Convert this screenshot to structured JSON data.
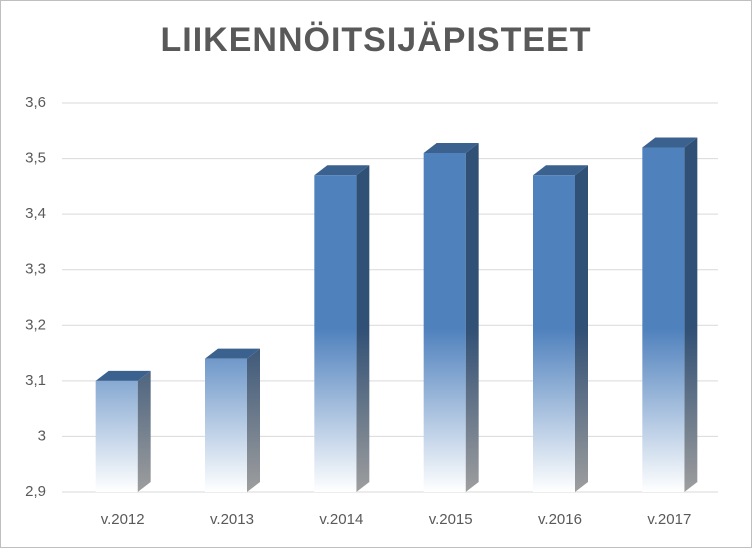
{
  "chart_data": {
    "type": "bar3d",
    "title": "LIIKENNÖITSIJÄPISTEET",
    "categories": [
      "v.2012",
      "v.2013",
      "v.2014",
      "v.2015",
      "v.2016",
      "v.2017"
    ],
    "values": [
      3.1,
      3.14,
      3.47,
      3.51,
      3.47,
      3.52
    ],
    "color": "#4f81bd",
    "ylim": [
      2.9,
      3.6
    ],
    "yticks": [
      {
        "value": 2.9,
        "label": "2,9"
      },
      3,
      {
        "value": 3.1,
        "label": "3,1"
      },
      {
        "value": 3.2,
        "label": "3,2"
      },
      {
        "value": 3.3,
        "label": "3,3"
      },
      {
        "value": 3.4,
        "label": "3,4"
      },
      {
        "value": 3.5,
        "label": "3,5"
      },
      {
        "value": 3.6,
        "label": "3,6"
      }
    ],
    "grid": true
  }
}
